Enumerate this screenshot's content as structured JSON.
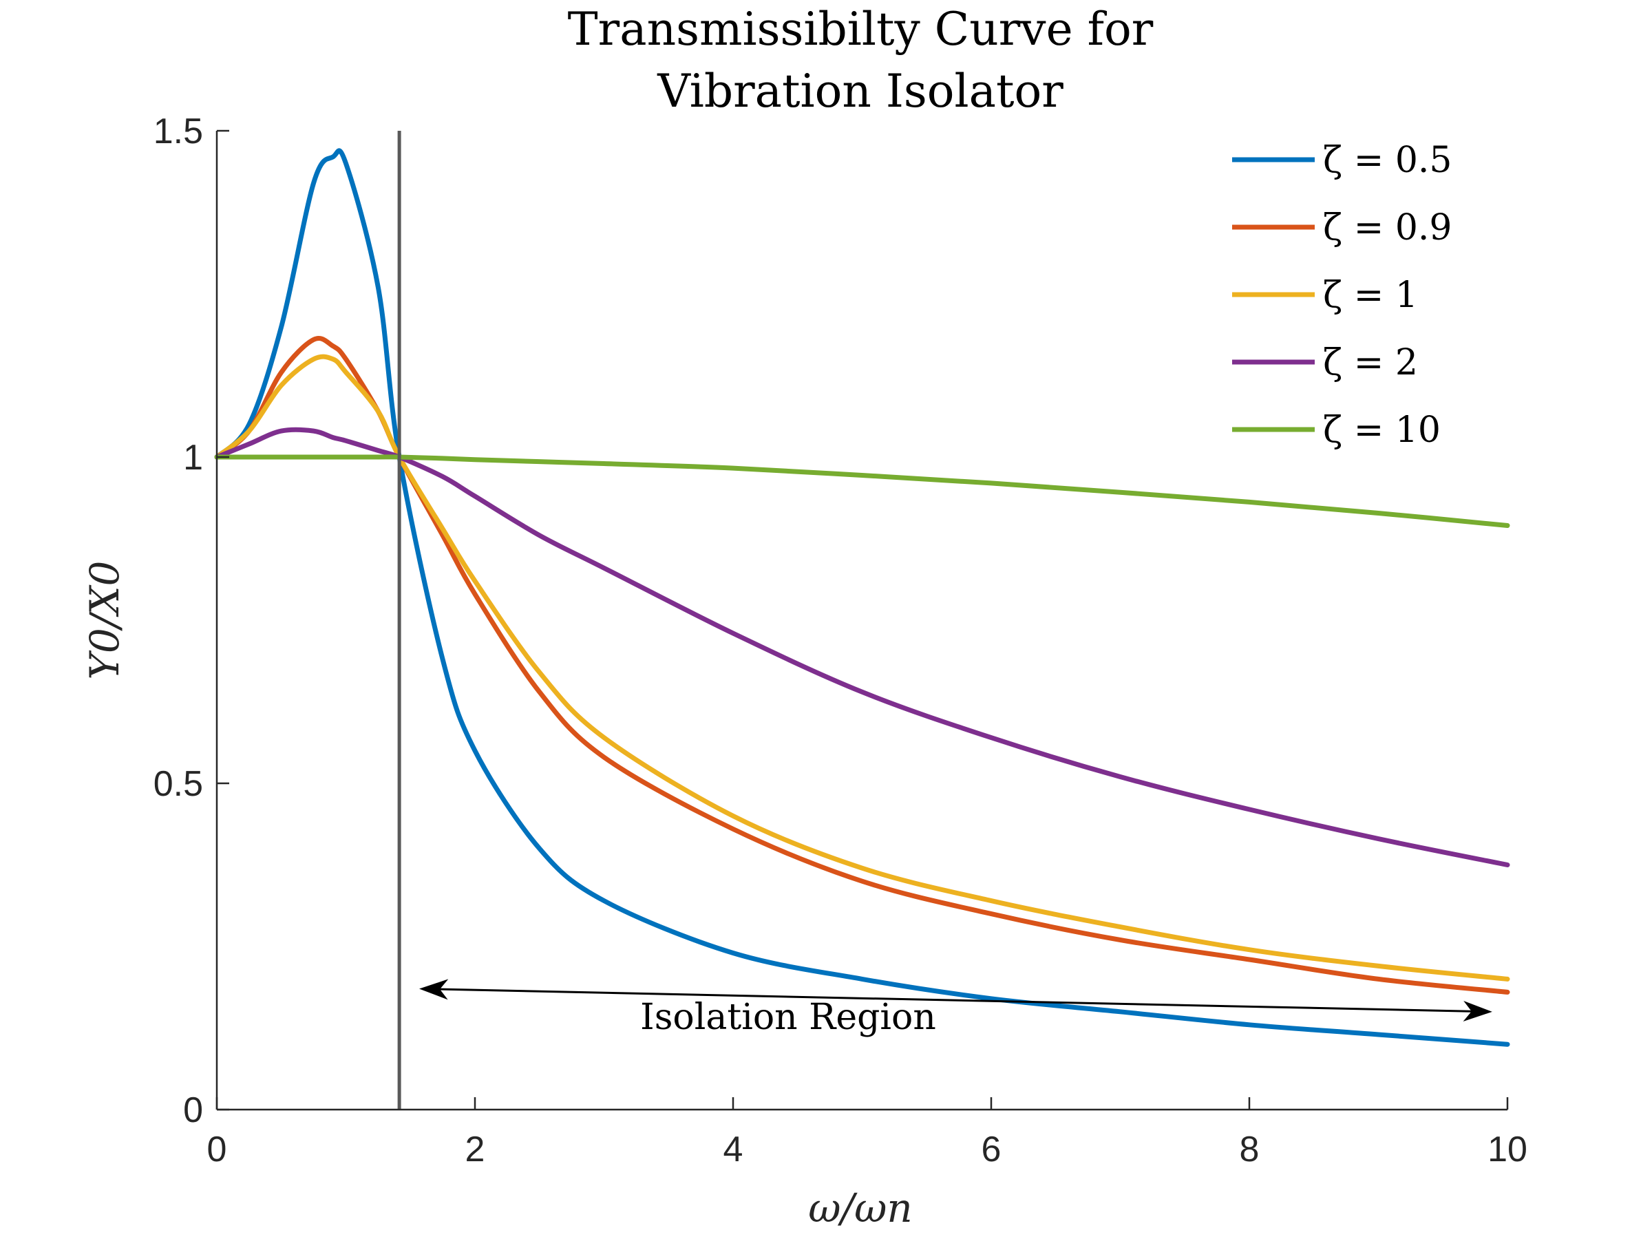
{
  "chart_data": {
    "type": "line",
    "title_lines": [
      "Transmissibilty Curve for",
      "Vibration Isolator"
    ],
    "xlabel": "ω/ωn",
    "ylabel": "Y0/X0",
    "xlim": [
      0,
      10
    ],
    "ylim": [
      0,
      1.5
    ],
    "xticks": [
      0,
      2,
      4,
      6,
      8,
      10
    ],
    "xtick_labels": [
      "0",
      "2",
      "4",
      "6",
      "8",
      "10"
    ],
    "yticks": [
      0,
      0.5,
      1,
      1.5
    ],
    "ytick_labels": [
      "0",
      "0.5",
      "1",
      "1.5"
    ],
    "grid": false,
    "legend_position": "top-right",
    "x": [
      0,
      0.25,
      0.5,
      0.75,
      0.9,
      1.0,
      1.25,
      1.414,
      1.75,
      2,
      2.5,
      3,
      4,
      5,
      6,
      7,
      8,
      9,
      10
    ],
    "series": [
      {
        "name": "ζ = 0.5",
        "color": "#0072BD",
        "values": [
          1.0,
          1.05,
          1.2,
          1.42,
          1.46,
          1.45,
          1.26,
          1.0,
          0.69,
          0.55,
          0.4,
          0.32,
          0.24,
          0.2,
          0.17,
          0.15,
          0.13,
          0.115,
          0.1
        ]
      },
      {
        "name": "ζ = 0.9",
        "color": "#D95319",
        "values": [
          1.0,
          1.04,
          1.13,
          1.18,
          1.17,
          1.15,
          1.07,
          1.0,
          0.88,
          0.79,
          0.64,
          0.54,
          0.43,
          0.35,
          0.3,
          0.26,
          0.23,
          0.2,
          0.18
        ]
      },
      {
        "name": "ζ = 1",
        "color": "#EDB120",
        "values": [
          1.0,
          1.04,
          1.11,
          1.15,
          1.15,
          1.13,
          1.07,
          1.0,
          0.89,
          0.81,
          0.67,
          0.57,
          0.45,
          0.37,
          0.32,
          0.28,
          0.245,
          0.22,
          0.2
        ]
      },
      {
        "name": "ζ = 2",
        "color": "#7E2F8E",
        "values": [
          1.0,
          1.02,
          1.04,
          1.04,
          1.03,
          1.025,
          1.01,
          1.0,
          0.97,
          0.94,
          0.88,
          0.83,
          0.73,
          0.64,
          0.57,
          0.51,
          0.46,
          0.415,
          0.375
        ]
      },
      {
        "name": "ζ = 10",
        "color": "#77AC30",
        "values": [
          1.0,
          1.0,
          1.0,
          1.0,
          1.0,
          1.0,
          1.0,
          1.0,
          0.998,
          0.996,
          0.993,
          0.99,
          0.983,
          0.972,
          0.96,
          0.946,
          0.931,
          0.914,
          0.895
        ]
      }
    ],
    "reference_line": {
      "x": 1.414,
      "color": "#5a5a5a"
    },
    "annotation": {
      "text": "Isolation Region",
      "arrow_from": [
        1.6,
        0.185
      ],
      "arrow_to": [
        9.85,
        0.15
      ]
    }
  }
}
